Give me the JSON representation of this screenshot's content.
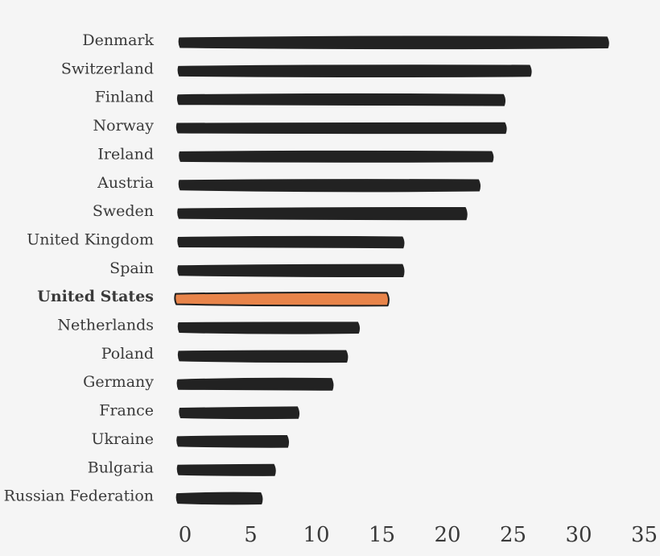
{
  "chart_data": {
    "type": "bar",
    "orientation": "horizontal",
    "categories": [
      "Denmark",
      "Switzerland",
      "Finland",
      "Norway",
      "Ireland",
      "Austria",
      "Sweden",
      "United Kingdom",
      "Spain",
      "United States",
      "Netherlands",
      "Poland",
      "Germany",
      "France",
      "Ukraine",
      "Bulgaria",
      "Russian Federation"
    ],
    "values": [
      32.3,
      26.4,
      24.4,
      24.5,
      23.5,
      22.5,
      21.5,
      16.7,
      16.7,
      15.5,
      13.3,
      12.4,
      11.3,
      8.7,
      7.9,
      6.9,
      5.9
    ],
    "highlight": "United States",
    "xlim": [
      0,
      35
    ],
    "xticks": [
      0,
      5,
      10,
      15,
      20,
      25,
      30,
      35
    ],
    "title": "",
    "xlabel": "",
    "ylabel": "",
    "grid": false,
    "colors": {
      "bar": "#222222",
      "highlight_fill": "#e8844a",
      "highlight_stroke": "#1f1f1f",
      "text": "#3a3a3a",
      "background": "#f5f5f5"
    }
  }
}
